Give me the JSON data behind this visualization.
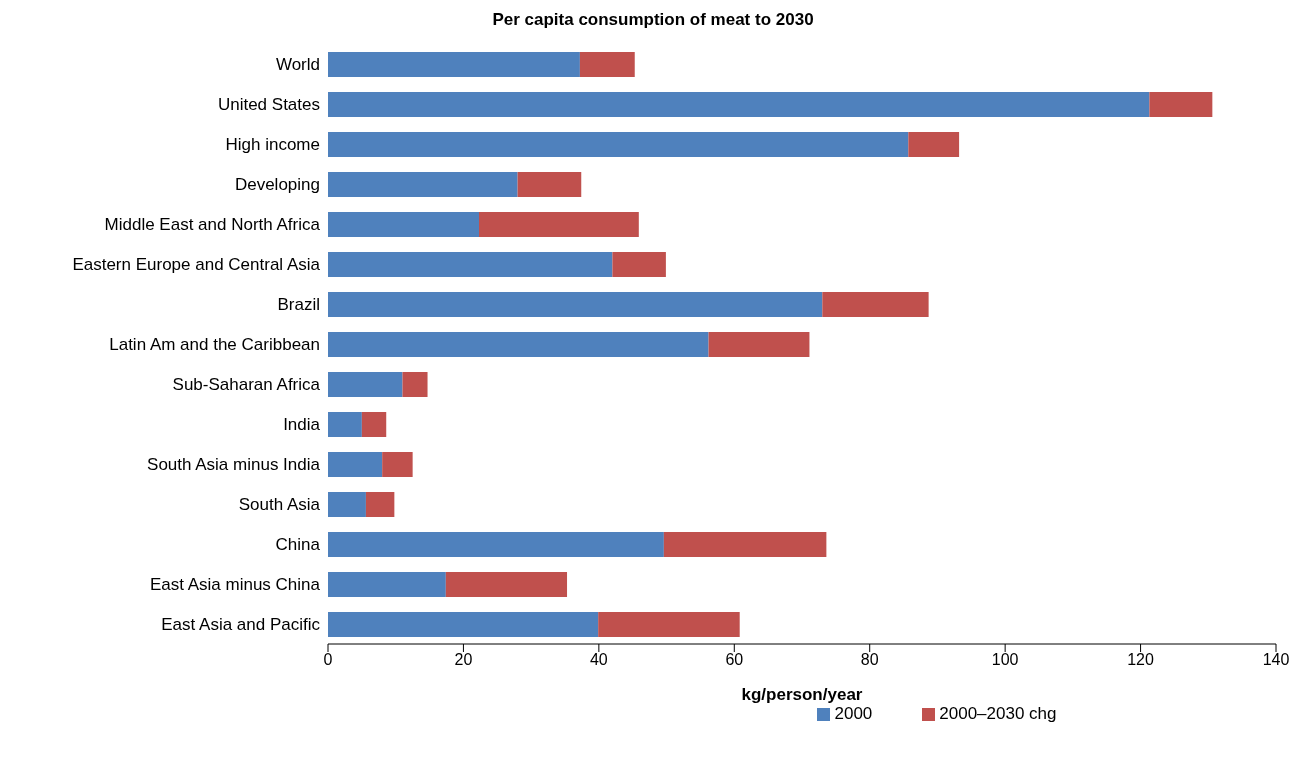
{
  "chart_data": {
    "type": "bar",
    "orientation": "horizontal",
    "stacked": true,
    "title": "Per capita consumption of meat to 2030",
    "xlabel": "kg/person/year",
    "categories": [
      "World",
      "United States",
      "High income",
      "Developing",
      "Middle East and North Africa",
      "Eastern Europe and Central Asia",
      "Brazil",
      "Latin Am and the Caribbean",
      "Sub-Saharan Africa",
      "India",
      "South Asia minus India",
      "South Asia",
      "China",
      "East Asia minus China",
      "East Asia and Pacific"
    ],
    "series": [
      {
        "name": "2000",
        "color": "#4f81bd",
        "values": [
          37.2,
          121.3,
          85.7,
          28.0,
          22.3,
          42.0,
          73.0,
          56.2,
          11.0,
          5.0,
          8.0,
          5.6,
          49.6,
          17.4,
          39.9
        ]
      },
      {
        "name": "2000–2030 chg",
        "color": "#c0504d",
        "values": [
          8.1,
          9.3,
          7.5,
          9.4,
          23.6,
          7.9,
          15.7,
          14.9,
          3.7,
          3.6,
          4.5,
          4.2,
          24.0,
          17.9,
          20.9
        ]
      }
    ],
    "xlim": [
      0,
      140
    ],
    "xticks": [
      0,
      20,
      40,
      60,
      80,
      100,
      120,
      140
    ],
    "grid": false,
    "legend": "bottom"
  }
}
